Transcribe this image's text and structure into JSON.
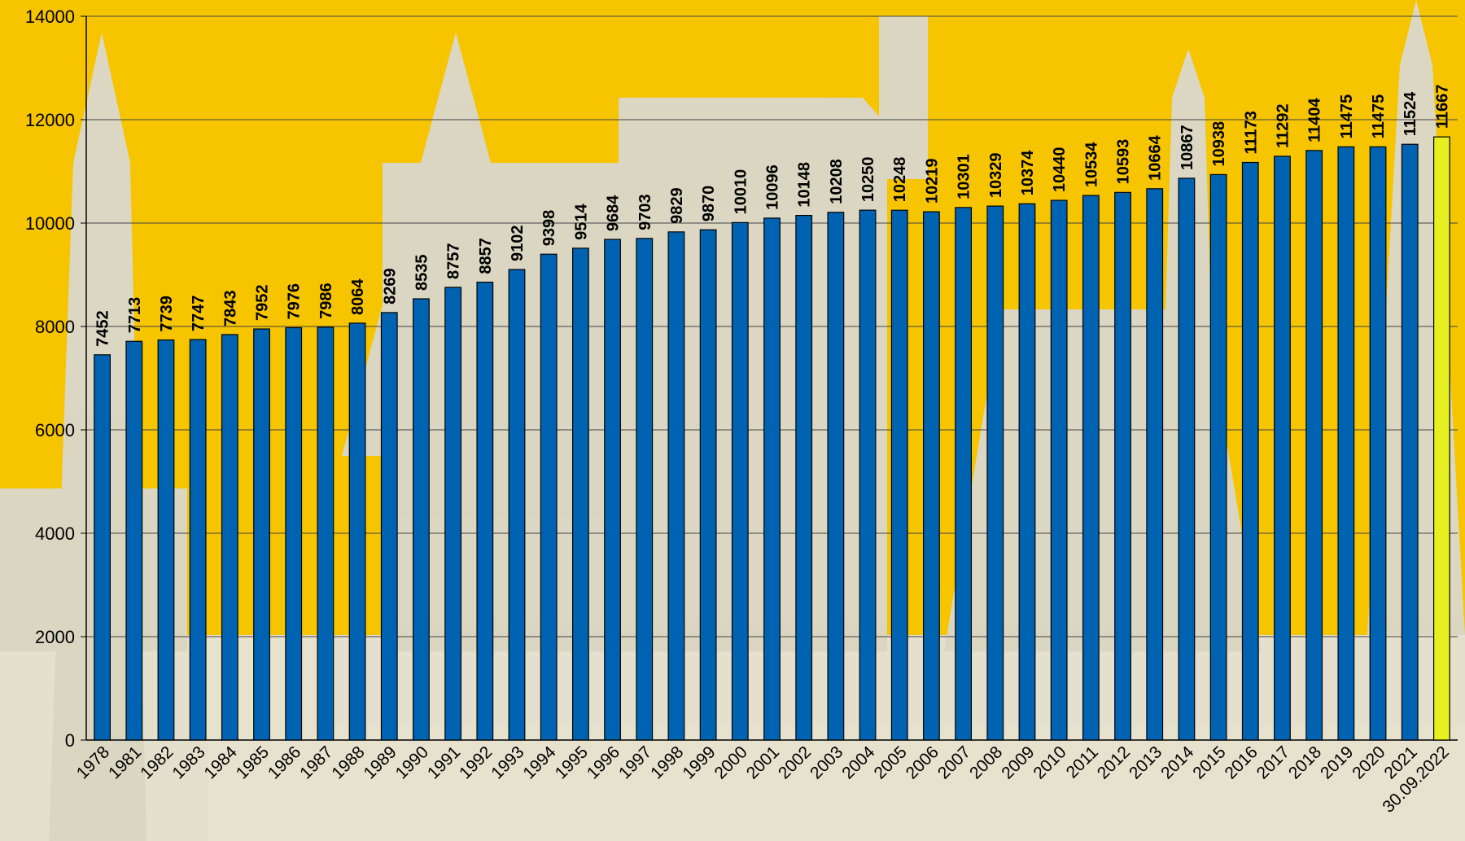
{
  "chart_data": {
    "type": "bar",
    "categories": [
      "1978",
      "1981",
      "1982",
      "1983",
      "1984",
      "1985",
      "1986",
      "1987",
      "1988",
      "1989",
      "1990",
      "1991",
      "1992",
      "1993",
      "1994",
      "1995",
      "1996",
      "1997",
      "1998",
      "1999",
      "2000",
      "2001",
      "2002",
      "2003",
      "2004",
      "2005",
      "2006",
      "2007",
      "2008",
      "2009",
      "2010",
      "2011",
      "2012",
      "2013",
      "2014",
      "2015",
      "2016",
      "2017",
      "2018",
      "2019",
      "2020",
      "2021",
      "30.09.2022"
    ],
    "values": [
      7452,
      7713,
      7739,
      7747,
      7843,
      7952,
      7976,
      7986,
      8064,
      8269,
      8535,
      8757,
      8857,
      9102,
      9398,
      9514,
      9684,
      9703,
      9829,
      9870,
      10010,
      10096,
      10148,
      10208,
      10250,
      10248,
      10219,
      10301,
      10329,
      10374,
      10440,
      10534,
      10593,
      10664,
      10867,
      10938,
      11173,
      11292,
      11404,
      11475,
      11475,
      11524,
      11667
    ],
    "colors": [
      "#0063b1",
      "#0063b1",
      "#0063b1",
      "#0063b1",
      "#0063b1",
      "#0063b1",
      "#0063b1",
      "#0063b1",
      "#0063b1",
      "#0063b1",
      "#0063b1",
      "#0063b1",
      "#0063b1",
      "#0063b1",
      "#0063b1",
      "#0063b1",
      "#0063b1",
      "#0063b1",
      "#0063b1",
      "#0063b1",
      "#0063b1",
      "#0063b1",
      "#0063b1",
      "#0063b1",
      "#0063b1",
      "#0063b1",
      "#0063b1",
      "#0063b1",
      "#0063b1",
      "#0063b1",
      "#0063b1",
      "#0063b1",
      "#0063b1",
      "#0063b1",
      "#0063b1",
      "#0063b1",
      "#0063b1",
      "#0063b1",
      "#0063b1",
      "#0063b1",
      "#0063b1",
      "#0063b1",
      "#e6f020"
    ],
    "ylim": [
      0,
      14000
    ],
    "yticks": [
      0,
      2000,
      4000,
      6000,
      8000,
      10000,
      12000,
      14000
    ],
    "grid": true
  }
}
